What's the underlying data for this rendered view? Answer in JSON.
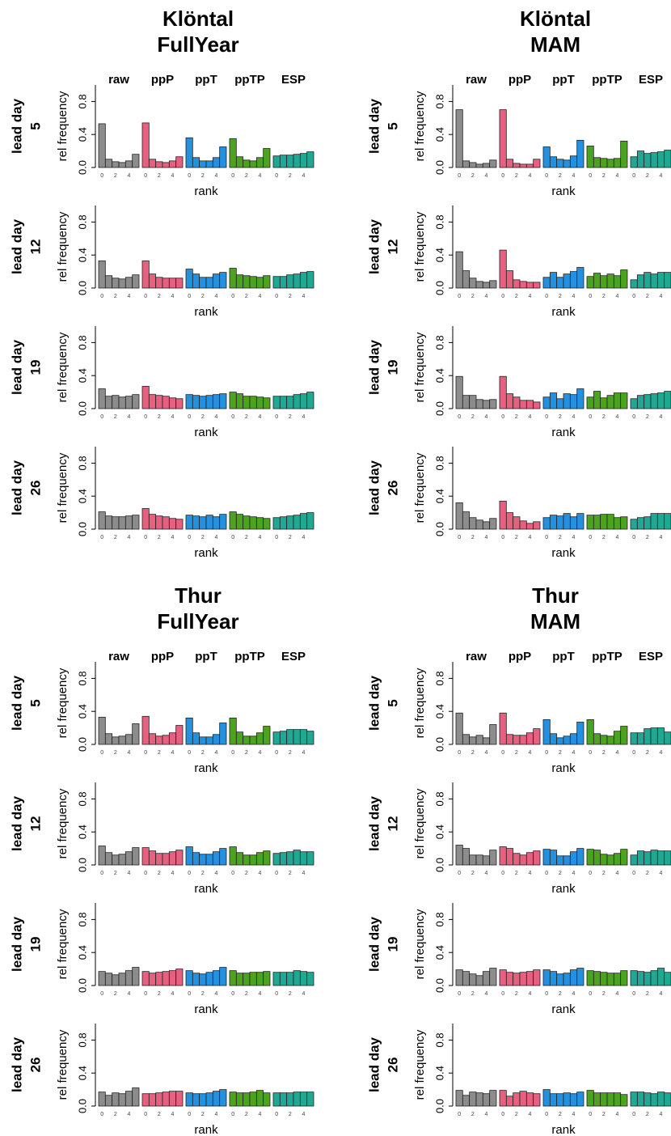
{
  "chart_data": [
    {
      "type": "bar",
      "title": "Klöntal",
      "subtitle": "FullYear",
      "row_label": "lead day",
      "ylabel": "rel frequency",
      "xlabel": "rank",
      "x": [
        0,
        1,
        2,
        3,
        4,
        5
      ],
      "xlim": [
        -0.5,
        5.5
      ],
      "xticks": [
        0,
        2,
        4
      ],
      "ylim": [
        0,
        1
      ],
      "yticks": [
        {
          "value": 0,
          "label": "0.0"
        },
        0.4,
        0.8
      ],
      "series": [
        {
          "name": "raw",
          "color": "#8c8c8c"
        },
        {
          "name": "ppP",
          "color": "#e6607f"
        },
        {
          "name": "ppT",
          "color": "#2490e0"
        },
        {
          "name": "ppTP",
          "color": "#4ba31e"
        },
        {
          "name": "ESP",
          "color": "#21a894"
        }
      ],
      "panels": [
        {
          "lead_day": 5,
          "values": [
            [
              0.53,
              0.1,
              0.07,
              0.06,
              0.08,
              0.16
            ],
            [
              0.54,
              0.1,
              0.07,
              0.06,
              0.08,
              0.13
            ],
            [
              0.36,
              0.12,
              0.08,
              0.08,
              0.12,
              0.25
            ],
            [
              0.35,
              0.13,
              0.09,
              0.08,
              0.12,
              0.23
            ],
            [
              0.14,
              0.15,
              0.15,
              0.16,
              0.17,
              0.19
            ]
          ]
        },
        {
          "lead_day": 12,
          "values": [
            [
              0.33,
              0.15,
              0.12,
              0.11,
              0.13,
              0.16
            ],
            [
              0.33,
              0.17,
              0.13,
              0.12,
              0.12,
              0.12
            ],
            [
              0.23,
              0.17,
              0.13,
              0.13,
              0.17,
              0.19
            ],
            [
              0.24,
              0.16,
              0.15,
              0.14,
              0.13,
              0.15
            ],
            [
              0.14,
              0.14,
              0.16,
              0.17,
              0.19,
              0.2
            ]
          ]
        },
        {
          "lead_day": 19,
          "values": [
            [
              0.24,
              0.15,
              0.16,
              0.14,
              0.15,
              0.17
            ],
            [
              0.27,
              0.17,
              0.16,
              0.15,
              0.13,
              0.12
            ],
            [
              0.17,
              0.16,
              0.15,
              0.16,
              0.17,
              0.18
            ],
            [
              0.2,
              0.18,
              0.15,
              0.15,
              0.14,
              0.13
            ],
            [
              0.15,
              0.15,
              0.15,
              0.17,
              0.18,
              0.2
            ]
          ]
        },
        {
          "lead_day": 26,
          "values": [
            [
              0.21,
              0.16,
              0.15,
              0.15,
              0.16,
              0.17
            ],
            [
              0.25,
              0.18,
              0.16,
              0.15,
              0.13,
              0.12
            ],
            [
              0.17,
              0.16,
              0.15,
              0.17,
              0.15,
              0.18
            ],
            [
              0.21,
              0.18,
              0.16,
              0.15,
              0.14,
              0.13
            ],
            [
              0.14,
              0.15,
              0.16,
              0.17,
              0.19,
              0.2
            ]
          ]
        }
      ]
    },
    {
      "type": "bar",
      "title": "Klöntal",
      "subtitle": "MAM",
      "row_label": "lead day",
      "ylabel": "rel frequency",
      "xlabel": "rank",
      "x": [
        0,
        1,
        2,
        3,
        4,
        5
      ],
      "xlim": [
        -0.5,
        5.5
      ],
      "xticks": [
        0,
        2,
        4
      ],
      "ylim": [
        0,
        1
      ],
      "yticks": [
        {
          "value": 0,
          "label": "0.0"
        },
        0.4,
        0.8
      ],
      "series": [
        {
          "name": "raw",
          "color": "#8c8c8c"
        },
        {
          "name": "ppP",
          "color": "#e6607f"
        },
        {
          "name": "ppT",
          "color": "#2490e0"
        },
        {
          "name": "ppTP",
          "color": "#4ba31e"
        },
        {
          "name": "ESP",
          "color": "#21a894"
        }
      ],
      "panels": [
        {
          "lead_day": 5,
          "values": [
            [
              0.7,
              0.08,
              0.06,
              0.04,
              0.05,
              0.09
            ],
            [
              0.7,
              0.1,
              0.05,
              0.04,
              0.04,
              0.1
            ],
            [
              0.25,
              0.13,
              0.1,
              0.09,
              0.14,
              0.33
            ],
            [
              0.26,
              0.12,
              0.11,
              0.1,
              0.11,
              0.32
            ],
            [
              0.13,
              0.2,
              0.17,
              0.18,
              0.19,
              0.21
            ]
          ]
        },
        {
          "lead_day": 12,
          "values": [
            [
              0.44,
              0.21,
              0.12,
              0.08,
              0.07,
              0.09
            ],
            [
              0.46,
              0.21,
              0.1,
              0.08,
              0.07,
              0.07
            ],
            [
              0.13,
              0.19,
              0.13,
              0.17,
              0.2,
              0.25
            ],
            [
              0.14,
              0.18,
              0.15,
              0.17,
              0.15,
              0.22
            ],
            [
              0.1,
              0.16,
              0.19,
              0.17,
              0.19,
              0.19
            ]
          ]
        },
        {
          "lead_day": 19,
          "values": [
            [
              0.39,
              0.16,
              0.16,
              0.11,
              0.1,
              0.11
            ],
            [
              0.39,
              0.18,
              0.14,
              0.1,
              0.1,
              0.08
            ],
            [
              0.14,
              0.19,
              0.12,
              0.18,
              0.17,
              0.24
            ],
            [
              0.14,
              0.21,
              0.13,
              0.16,
              0.19,
              0.19
            ],
            [
              0.12,
              0.16,
              0.17,
              0.18,
              0.19,
              0.21
            ]
          ]
        },
        {
          "lead_day": 26,
          "values": [
            [
              0.32,
              0.21,
              0.14,
              0.11,
              0.09,
              0.13
            ],
            [
              0.34,
              0.2,
              0.15,
              0.1,
              0.07,
              0.09
            ],
            [
              0.14,
              0.17,
              0.16,
              0.19,
              0.15,
              0.19
            ],
            [
              0.17,
              0.17,
              0.18,
              0.18,
              0.14,
              0.15
            ],
            [
              0.12,
              0.14,
              0.15,
              0.19,
              0.19,
              0.19
            ]
          ]
        }
      ]
    },
    {
      "type": "bar",
      "title": "Thur",
      "subtitle": "FullYear",
      "row_label": "lead day",
      "ylabel": "rel frequency",
      "xlabel": "rank",
      "x": [
        0,
        1,
        2,
        3,
        4,
        5
      ],
      "xlim": [
        -0.5,
        5.5
      ],
      "xticks": [
        0,
        2,
        4
      ],
      "ylim": [
        0,
        1
      ],
      "yticks": [
        {
          "value": 0,
          "label": "0.0"
        },
        0.4,
        0.8
      ],
      "series": [
        {
          "name": "raw",
          "color": "#8c8c8c"
        },
        {
          "name": "ppP",
          "color": "#e6607f"
        },
        {
          "name": "ppT",
          "color": "#2490e0"
        },
        {
          "name": "ppTP",
          "color": "#4ba31e"
        },
        {
          "name": "ESP",
          "color": "#21a894"
        }
      ],
      "panels": [
        {
          "lead_day": 5,
          "values": [
            [
              0.33,
              0.13,
              0.09,
              0.1,
              0.12,
              0.25
            ],
            [
              0.34,
              0.13,
              0.1,
              0.11,
              0.14,
              0.23
            ],
            [
              0.32,
              0.14,
              0.09,
              0.09,
              0.12,
              0.26
            ],
            [
              0.32,
              0.15,
              0.1,
              0.1,
              0.14,
              0.22
            ],
            [
              0.15,
              0.16,
              0.18,
              0.18,
              0.18,
              0.16
            ]
          ]
        },
        {
          "lead_day": 12,
          "values": [
            [
              0.23,
              0.15,
              0.12,
              0.13,
              0.16,
              0.21
            ],
            [
              0.21,
              0.17,
              0.14,
              0.14,
              0.16,
              0.18
            ],
            [
              0.22,
              0.15,
              0.13,
              0.13,
              0.16,
              0.2
            ],
            [
              0.22,
              0.15,
              0.12,
              0.12,
              0.15,
              0.17
            ],
            [
              0.14,
              0.15,
              0.16,
              0.18,
              0.16,
              0.16
            ]
          ]
        },
        {
          "lead_day": 19,
          "values": [
            [
              0.17,
              0.15,
              0.13,
              0.15,
              0.18,
              0.22
            ],
            [
              0.17,
              0.15,
              0.16,
              0.17,
              0.18,
              0.2
            ],
            [
              0.18,
              0.15,
              0.14,
              0.16,
              0.18,
              0.22
            ],
            [
              0.18,
              0.15,
              0.15,
              0.16,
              0.16,
              0.17
            ],
            [
              0.16,
              0.16,
              0.16,
              0.18,
              0.17,
              0.16
            ]
          ]
        },
        {
          "lead_day": 26,
          "values": [
            [
              0.17,
              0.13,
              0.16,
              0.15,
              0.18,
              0.22
            ],
            [
              0.15,
              0.15,
              0.16,
              0.17,
              0.18,
              0.18
            ],
            [
              0.16,
              0.15,
              0.15,
              0.16,
              0.18,
              0.2
            ],
            [
              0.17,
              0.16,
              0.16,
              0.17,
              0.19,
              0.16
            ],
            [
              0.16,
              0.16,
              0.16,
              0.17,
              0.17,
              0.17
            ]
          ]
        }
      ]
    },
    {
      "type": "bar",
      "title": "Thur",
      "subtitle": "MAM",
      "row_label": "lead day",
      "ylabel": "rel frequency",
      "xlabel": "rank",
      "x": [
        0,
        1,
        2,
        3,
        4,
        5
      ],
      "xlim": [
        -0.5,
        5.5
      ],
      "xticks": [
        0,
        2,
        4
      ],
      "ylim": [
        0,
        1
      ],
      "yticks": [
        {
          "value": 0,
          "label": "0.0"
        },
        0.4,
        0.8
      ],
      "series": [
        {
          "name": "raw",
          "color": "#8c8c8c"
        },
        {
          "name": "ppP",
          "color": "#e6607f"
        },
        {
          "name": "ppT",
          "color": "#2490e0"
        },
        {
          "name": "ppTP",
          "color": "#4ba31e"
        },
        {
          "name": "ESP",
          "color": "#21a894"
        }
      ],
      "panels": [
        {
          "lead_day": 5,
          "values": [
            [
              0.38,
              0.12,
              0.09,
              0.11,
              0.08,
              0.24
            ],
            [
              0.38,
              0.12,
              0.11,
              0.11,
              0.14,
              0.19
            ],
            [
              0.3,
              0.13,
              0.08,
              0.1,
              0.13,
              0.27
            ],
            [
              0.3,
              0.13,
              0.11,
              0.1,
              0.16,
              0.22
            ],
            [
              0.14,
              0.14,
              0.19,
              0.2,
              0.2,
              0.15
            ]
          ]
        },
        {
          "lead_day": 12,
          "values": [
            [
              0.24,
              0.2,
              0.12,
              0.12,
              0.11,
              0.18
            ],
            [
              0.22,
              0.2,
              0.14,
              0.12,
              0.15,
              0.17
            ],
            [
              0.19,
              0.18,
              0.11,
              0.11,
              0.16,
              0.2
            ],
            [
              0.19,
              0.18,
              0.13,
              0.12,
              0.14,
              0.19
            ],
            [
              0.12,
              0.17,
              0.16,
              0.18,
              0.17,
              0.17
            ]
          ]
        },
        {
          "lead_day": 19,
          "values": [
            [
              0.19,
              0.17,
              0.14,
              0.12,
              0.17,
              0.21
            ],
            [
              0.19,
              0.16,
              0.15,
              0.16,
              0.17,
              0.19
            ],
            [
              0.19,
              0.17,
              0.14,
              0.15,
              0.19,
              0.21
            ],
            [
              0.18,
              0.17,
              0.16,
              0.15,
              0.15,
              0.18
            ],
            [
              0.18,
              0.17,
              0.16,
              0.18,
              0.21,
              0.16
            ]
          ]
        },
        {
          "lead_day": 26,
          "values": [
            [
              0.19,
              0.13,
              0.17,
              0.16,
              0.15,
              0.19
            ],
            [
              0.19,
              0.12,
              0.16,
              0.18,
              0.16,
              0.15
            ],
            [
              0.2,
              0.15,
              0.15,
              0.16,
              0.15,
              0.17
            ],
            [
              0.19,
              0.16,
              0.16,
              0.16,
              0.16,
              0.14
            ],
            [
              0.17,
              0.17,
              0.16,
              0.15,
              0.17,
              0.16
            ]
          ]
        }
      ]
    }
  ]
}
